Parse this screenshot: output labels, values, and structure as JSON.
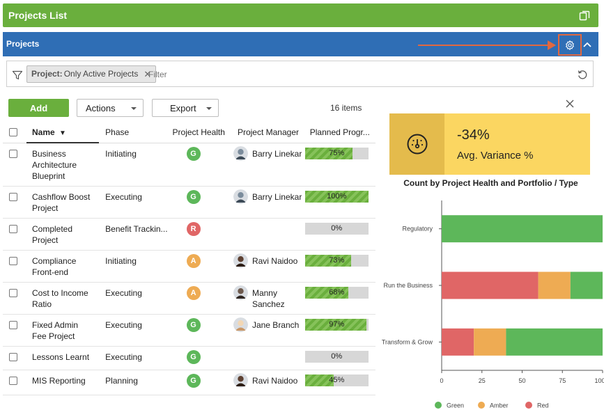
{
  "header": {
    "title": "Projects List"
  },
  "panel": {
    "title": "Projects"
  },
  "filter": {
    "chip_field": "Project:",
    "chip_value": "Only Active Projects",
    "placeholder": "Filter"
  },
  "toolbar": {
    "add": "Add",
    "actions": "Actions",
    "export": "Export",
    "count": "16 items"
  },
  "columns": {
    "name": "Name",
    "phase": "Phase",
    "health": "Project Health",
    "manager": "Project Manager",
    "progress": "Planned Progr..."
  },
  "health_colors": {
    "G": "#5db75a",
    "A": "#eeab53",
    "R": "#e06666"
  },
  "rows": [
    {
      "name": "Business Architecture Blueprint",
      "phase": "Initiating",
      "health": "G",
      "manager": "Barry Linekar",
      "progress": 75,
      "progress_label": "75%"
    },
    {
      "name": "Cashflow Boost Project",
      "phase": "Executing",
      "health": "G",
      "manager": "Barry Linekar",
      "progress": 100,
      "progress_label": "100%"
    },
    {
      "name": "Completed Project",
      "phase": "Benefit Trackin...",
      "health": "R",
      "manager": "",
      "progress": 0,
      "progress_label": "0%"
    },
    {
      "name": "Compliance Front-end",
      "phase": "Initiating",
      "health": "A",
      "manager": "Ravi Naidoo",
      "progress": 73,
      "progress_label": "73%"
    },
    {
      "name": "Cost to Income Ratio",
      "phase": "Executing",
      "health": "A",
      "manager": "Manny Sanchez",
      "progress": 68,
      "progress_label": "68%"
    },
    {
      "name": "Fixed Admin Fee Project",
      "phase": "Executing",
      "health": "G",
      "manager": "Jane Branch",
      "progress": 97,
      "progress_label": "97%"
    },
    {
      "name": "Lessons Learnt",
      "phase": "Executing",
      "health": "G",
      "manager": "",
      "progress": 0,
      "progress_label": "0%"
    },
    {
      "name": "MIS Reporting",
      "phase": "Planning",
      "health": "G",
      "manager": "Ravi Naidoo",
      "progress": 45,
      "progress_label": "45%"
    }
  ],
  "kpi": {
    "value": "-34%",
    "label": "Avg. Variance %",
    "icon": "gauge-icon"
  },
  "chart_data": {
    "type": "bar",
    "orientation": "horizontal",
    "stacked": true,
    "title": "Count by Project Health and Portfolio / Type",
    "categories": [
      "Regulatory",
      "Run the Business",
      "Transform & Grow"
    ],
    "series": [
      {
        "name": "Green",
        "color": "#5db75a",
        "values": [
          100,
          20,
          60
        ]
      },
      {
        "name": "Amber",
        "color": "#eeab53",
        "values": [
          0,
          20,
          20
        ]
      },
      {
        "name": "Red",
        "color": "#e06666",
        "values": [
          0,
          60,
          20
        ]
      }
    ],
    "series_order": [
      "Red",
      "Amber",
      "Green"
    ],
    "xlim": [
      0,
      100
    ],
    "xticks": [
      "0",
      "25",
      "50",
      "75",
      "100"
    ],
    "grid": false,
    "legend": "bottom"
  }
}
